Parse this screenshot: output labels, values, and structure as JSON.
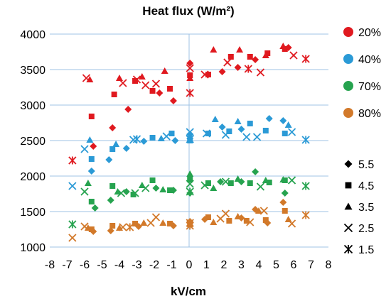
{
  "chart_data": {
    "type": "scatter",
    "title": "Heat flux (W/m²)",
    "xlabel": "kV/cm",
    "ylabel": "",
    "xlim": [
      -8,
      8
    ],
    "ylim": [
      1000,
      4000
    ],
    "xticks": [
      "-8",
      "-7",
      "-6",
      "-5",
      "-4",
      "-3",
      "-2",
      "-1",
      "0",
      "1",
      "2",
      "3",
      "4",
      "5",
      "6",
      "7",
      "8"
    ],
    "yticks": [
      "1000",
      "1500",
      "2000",
      "2500",
      "3000",
      "3500",
      "4000"
    ],
    "grid": "horizontal",
    "legend_position": "right",
    "color_legend": [
      {
        "label": "20%",
        "color": "#e0191f"
      },
      {
        "label": "40%",
        "color": "#2b9ad6"
      },
      {
        "label": "70%",
        "color": "#26a34f"
      },
      {
        "label": "80%",
        "color": "#d2792a"
      }
    ],
    "marker_legend": [
      {
        "label": "5.5",
        "marker": "diamond"
      },
      {
        "label": "4.5",
        "marker": "square"
      },
      {
        "label": "3.5",
        "marker": "triangle"
      },
      {
        "label": "2.5",
        "marker": "x"
      },
      {
        "label": "1.5",
        "marker": "star"
      }
    ],
    "marker_color": "#000000",
    "series": [
      {
        "name": "20%",
        "color": "#e0191f",
        "points": [
          {
            "x": -6.7,
            "y": 2220,
            "marker": "star"
          },
          {
            "x": -5.9,
            "y": 3380,
            "marker": "x"
          },
          {
            "x": -5.7,
            "y": 3360,
            "marker": "triangle"
          },
          {
            "x": -5.6,
            "y": 2840,
            "marker": "square"
          },
          {
            "x": -5.5,
            "y": 2420,
            "marker": "diamond"
          },
          {
            "x": -4.4,
            "y": 2680,
            "marker": "diamond"
          },
          {
            "x": -4.3,
            "y": 3150,
            "marker": "square"
          },
          {
            "x": -4.0,
            "y": 3380,
            "marker": "triangle"
          },
          {
            "x": -3.8,
            "y": 3310,
            "marker": "x"
          },
          {
            "x": -3.5,
            "y": 2940,
            "marker": "diamond"
          },
          {
            "x": -3.1,
            "y": 3340,
            "marker": "square"
          },
          {
            "x": -3.0,
            "y": 3360,
            "marker": "x"
          },
          {
            "x": -2.7,
            "y": 3400,
            "marker": "triangle"
          },
          {
            "x": -2.5,
            "y": 3280,
            "marker": "x"
          },
          {
            "x": -2.1,
            "y": 3200,
            "marker": "square"
          },
          {
            "x": -1.9,
            "y": 3300,
            "marker": "x"
          },
          {
            "x": -1.7,
            "y": 3170,
            "marker": "diamond"
          },
          {
            "x": -1.4,
            "y": 3480,
            "marker": "triangle"
          },
          {
            "x": -1.1,
            "y": 3230,
            "marker": "square"
          },
          {
            "x": -0.9,
            "y": 3060,
            "marker": "diamond"
          },
          {
            "x": 0.05,
            "y": 3590,
            "marker": "diamond"
          },
          {
            "x": 0.05,
            "y": 3520,
            "marker": "x"
          },
          {
            "x": 0.05,
            "y": 3420,
            "marker": "square"
          },
          {
            "x": 0.05,
            "y": 3380,
            "marker": "triangle"
          },
          {
            "x": 0.05,
            "y": 3170,
            "marker": "star"
          },
          {
            "x": 0.9,
            "y": 3430,
            "marker": "x"
          },
          {
            "x": 1.1,
            "y": 3430,
            "marker": "square"
          },
          {
            "x": 1.4,
            "y": 3780,
            "marker": "triangle"
          },
          {
            "x": 1.9,
            "y": 3470,
            "marker": "diamond"
          },
          {
            "x": 2.2,
            "y": 3600,
            "marker": "x"
          },
          {
            "x": 2.4,
            "y": 3680,
            "marker": "square"
          },
          {
            "x": 2.8,
            "y": 3530,
            "marker": "diamond"
          },
          {
            "x": 2.9,
            "y": 3780,
            "marker": "triangle"
          },
          {
            "x": 3.4,
            "y": 3510,
            "marker": "star"
          },
          {
            "x": 3.5,
            "y": 3680,
            "marker": "square"
          },
          {
            "x": 3.8,
            "y": 3640,
            "marker": "diamond"
          },
          {
            "x": 4.1,
            "y": 3460,
            "marker": "x"
          },
          {
            "x": 4.4,
            "y": 3700,
            "marker": "triangle"
          },
          {
            "x": 4.5,
            "y": 3730,
            "marker": "square"
          },
          {
            "x": 5.4,
            "y": 3830,
            "marker": "triangle"
          },
          {
            "x": 5.5,
            "y": 3790,
            "marker": "square"
          },
          {
            "x": 5.7,
            "y": 3810,
            "marker": "diamond"
          },
          {
            "x": 6.0,
            "y": 3700,
            "marker": "x"
          },
          {
            "x": 6.7,
            "y": 3650,
            "marker": "star"
          }
        ]
      },
      {
        "name": "40%",
        "color": "#2b9ad6",
        "points": [
          {
            "x": -6.7,
            "y": 1860,
            "marker": "x"
          },
          {
            "x": -6.0,
            "y": 2380,
            "marker": "x"
          },
          {
            "x": -5.6,
            "y": 2070,
            "marker": "diamond"
          },
          {
            "x": -5.6,
            "y": 2240,
            "marker": "square"
          },
          {
            "x": -5.7,
            "y": 2510,
            "marker": "triangle"
          },
          {
            "x": -4.6,
            "y": 2230,
            "marker": "diamond"
          },
          {
            "x": -4.4,
            "y": 2380,
            "marker": "square"
          },
          {
            "x": -4.2,
            "y": 2450,
            "marker": "triangle"
          },
          {
            "x": -3.6,
            "y": 2390,
            "marker": "diamond"
          },
          {
            "x": -3.2,
            "y": 2510,
            "marker": "x"
          },
          {
            "x": -3.0,
            "y": 2520,
            "marker": "star"
          },
          {
            "x": -2.6,
            "y": 2490,
            "marker": "diamond"
          },
          {
            "x": -2.1,
            "y": 2540,
            "marker": "square"
          },
          {
            "x": -1.6,
            "y": 2530,
            "marker": "triangle"
          },
          {
            "x": -1.3,
            "y": 2560,
            "marker": "x"
          },
          {
            "x": -1.0,
            "y": 2600,
            "marker": "square"
          },
          {
            "x": -0.8,
            "y": 2500,
            "marker": "diamond"
          },
          {
            "x": 0.05,
            "y": 2590,
            "marker": "diamond"
          },
          {
            "x": 0.05,
            "y": 2560,
            "marker": "triangle"
          },
          {
            "x": 0.05,
            "y": 2620,
            "marker": "x"
          },
          {
            "x": 0.05,
            "y": 2500,
            "marker": "square"
          },
          {
            "x": 0.05,
            "y": 2520,
            "marker": "star"
          },
          {
            "x": 1.0,
            "y": 2600,
            "marker": "x"
          },
          {
            "x": 1.1,
            "y": 2600,
            "marker": "square"
          },
          {
            "x": 1.5,
            "y": 2800,
            "marker": "triangle"
          },
          {
            "x": 1.9,
            "y": 2690,
            "marker": "diamond"
          },
          {
            "x": 2.1,
            "y": 2580,
            "marker": "x"
          },
          {
            "x": 2.3,
            "y": 2630,
            "marker": "square"
          },
          {
            "x": 2.8,
            "y": 2770,
            "marker": "triangle"
          },
          {
            "x": 3.0,
            "y": 2660,
            "marker": "diamond"
          },
          {
            "x": 3.3,
            "y": 2550,
            "marker": "x"
          },
          {
            "x": 3.5,
            "y": 2740,
            "marker": "square"
          },
          {
            "x": 3.9,
            "y": 2550,
            "marker": "x"
          },
          {
            "x": 4.4,
            "y": 2640,
            "marker": "square"
          },
          {
            "x": 4.6,
            "y": 2810,
            "marker": "diamond"
          },
          {
            "x": 5.4,
            "y": 2780,
            "marker": "diamond"
          },
          {
            "x": 5.5,
            "y": 2600,
            "marker": "square"
          },
          {
            "x": 5.7,
            "y": 2720,
            "marker": "triangle"
          },
          {
            "x": 5.9,
            "y": 2620,
            "marker": "x"
          },
          {
            "x": 6.7,
            "y": 2510,
            "marker": "star"
          }
        ]
      },
      {
        "name": "70%",
        "color": "#26a34f",
        "points": [
          {
            "x": -6.7,
            "y": 1320,
            "marker": "star"
          },
          {
            "x": -6.0,
            "y": 1780,
            "marker": "x"
          },
          {
            "x": -5.8,
            "y": 1900,
            "marker": "triangle"
          },
          {
            "x": -5.6,
            "y": 1640,
            "marker": "square"
          },
          {
            "x": -5.4,
            "y": 1550,
            "marker": "diamond"
          },
          {
            "x": -4.5,
            "y": 1660,
            "marker": "diamond"
          },
          {
            "x": -4.4,
            "y": 1860,
            "marker": "square"
          },
          {
            "x": -4.1,
            "y": 1780,
            "marker": "triangle"
          },
          {
            "x": -3.9,
            "y": 1760,
            "marker": "x"
          },
          {
            "x": -3.6,
            "y": 1780,
            "marker": "diamond"
          },
          {
            "x": -3.2,
            "y": 1740,
            "marker": "square"
          },
          {
            "x": -3.1,
            "y": 1760,
            "marker": "x"
          },
          {
            "x": -2.7,
            "y": 1870,
            "marker": "triangle"
          },
          {
            "x": -2.5,
            "y": 1830,
            "marker": "x"
          },
          {
            "x": -2.1,
            "y": 1940,
            "marker": "square"
          },
          {
            "x": -1.9,
            "y": 1830,
            "marker": "diamond"
          },
          {
            "x": -1.5,
            "y": 1810,
            "marker": "triangle"
          },
          {
            "x": -1.1,
            "y": 1800,
            "marker": "square"
          },
          {
            "x": -0.9,
            "y": 1800,
            "marker": "diamond"
          },
          {
            "x": 0.05,
            "y": 2030,
            "marker": "triangle"
          },
          {
            "x": 0.05,
            "y": 1950,
            "marker": "square"
          },
          {
            "x": 0.05,
            "y": 1890,
            "marker": "x"
          },
          {
            "x": 0.05,
            "y": 1780,
            "marker": "star"
          },
          {
            "x": 0.05,
            "y": 1760,
            "marker": "diamond"
          },
          {
            "x": 0.9,
            "y": 1870,
            "marker": "x"
          },
          {
            "x": 1.1,
            "y": 1900,
            "marker": "square"
          },
          {
            "x": 1.4,
            "y": 1830,
            "marker": "triangle"
          },
          {
            "x": 1.8,
            "y": 1920,
            "marker": "diamond"
          },
          {
            "x": 2.1,
            "y": 1920,
            "marker": "x"
          },
          {
            "x": 2.4,
            "y": 1900,
            "marker": "square"
          },
          {
            "x": 2.8,
            "y": 1960,
            "marker": "triangle"
          },
          {
            "x": 3.0,
            "y": 1920,
            "marker": "diamond"
          },
          {
            "x": 3.5,
            "y": 1900,
            "marker": "square"
          },
          {
            "x": 3.8,
            "y": 2060,
            "marker": "diamond"
          },
          {
            "x": 4.1,
            "y": 1850,
            "marker": "x"
          },
          {
            "x": 4.4,
            "y": 1940,
            "marker": "triangle"
          },
          {
            "x": 4.6,
            "y": 1910,
            "marker": "square"
          },
          {
            "x": 5.4,
            "y": 1950,
            "marker": "triangle"
          },
          {
            "x": 5.5,
            "y": 1940,
            "marker": "square"
          },
          {
            "x": 5.5,
            "y": 1760,
            "marker": "diamond"
          },
          {
            "x": 5.9,
            "y": 1940,
            "marker": "x"
          },
          {
            "x": 6.7,
            "y": 1860,
            "marker": "star"
          }
        ]
      },
      {
        "name": "80%",
        "color": "#d2792a",
        "points": [
          {
            "x": -6.7,
            "y": 1130,
            "marker": "x"
          },
          {
            "x": -6.0,
            "y": 1290,
            "marker": "x"
          },
          {
            "x": -5.8,
            "y": 1270,
            "marker": "triangle"
          },
          {
            "x": -5.6,
            "y": 1250,
            "marker": "square"
          },
          {
            "x": -5.5,
            "y": 1220,
            "marker": "diamond"
          },
          {
            "x": -4.5,
            "y": 1230,
            "marker": "diamond"
          },
          {
            "x": -4.4,
            "y": 1300,
            "marker": "square"
          },
          {
            "x": -4.0,
            "y": 1270,
            "marker": "triangle"
          },
          {
            "x": -3.8,
            "y": 1280,
            "marker": "x"
          },
          {
            "x": -3.4,
            "y": 1280,
            "marker": "star"
          },
          {
            "x": -3.1,
            "y": 1330,
            "marker": "square"
          },
          {
            "x": -2.9,
            "y": 1290,
            "marker": "diamond"
          },
          {
            "x": -2.6,
            "y": 1340,
            "marker": "triangle"
          },
          {
            "x": -2.2,
            "y": 1340,
            "marker": "x"
          },
          {
            "x": -1.9,
            "y": 1420,
            "marker": "x"
          },
          {
            "x": -1.5,
            "y": 1340,
            "marker": "triangle"
          },
          {
            "x": -1.1,
            "y": 1330,
            "marker": "square"
          },
          {
            "x": -0.9,
            "y": 1300,
            "marker": "diamond"
          },
          {
            "x": 0.05,
            "y": 1360,
            "marker": "diamond"
          },
          {
            "x": 0.05,
            "y": 1340,
            "marker": "x"
          },
          {
            "x": 0.05,
            "y": 1320,
            "marker": "square"
          },
          {
            "x": 0.05,
            "y": 1300,
            "marker": "star"
          },
          {
            "x": 0.9,
            "y": 1390,
            "marker": "diamond"
          },
          {
            "x": 1.1,
            "y": 1420,
            "marker": "square"
          },
          {
            "x": 1.4,
            "y": 1350,
            "marker": "triangle"
          },
          {
            "x": 1.8,
            "y": 1400,
            "marker": "x"
          },
          {
            "x": 2.1,
            "y": 1470,
            "marker": "x"
          },
          {
            "x": 2.3,
            "y": 1370,
            "marker": "square"
          },
          {
            "x": 2.8,
            "y": 1430,
            "marker": "triangle"
          },
          {
            "x": 3.0,
            "y": 1410,
            "marker": "diamond"
          },
          {
            "x": 3.3,
            "y": 1370,
            "marker": "square"
          },
          {
            "x": 3.5,
            "y": 1350,
            "marker": "x"
          },
          {
            "x": 3.8,
            "y": 1530,
            "marker": "diamond"
          },
          {
            "x": 4.0,
            "y": 1510,
            "marker": "triangle"
          },
          {
            "x": 4.3,
            "y": 1510,
            "marker": "x"
          },
          {
            "x": 4.4,
            "y": 1380,
            "marker": "square"
          },
          {
            "x": 4.5,
            "y": 1340,
            "marker": "diamond"
          },
          {
            "x": 5.4,
            "y": 1630,
            "marker": "diamond"
          },
          {
            "x": 5.5,
            "y": 1510,
            "marker": "square"
          },
          {
            "x": 5.7,
            "y": 1390,
            "marker": "triangle"
          },
          {
            "x": 5.9,
            "y": 1330,
            "marker": "x"
          },
          {
            "x": 6.7,
            "y": 1450,
            "marker": "star"
          }
        ]
      }
    ]
  }
}
